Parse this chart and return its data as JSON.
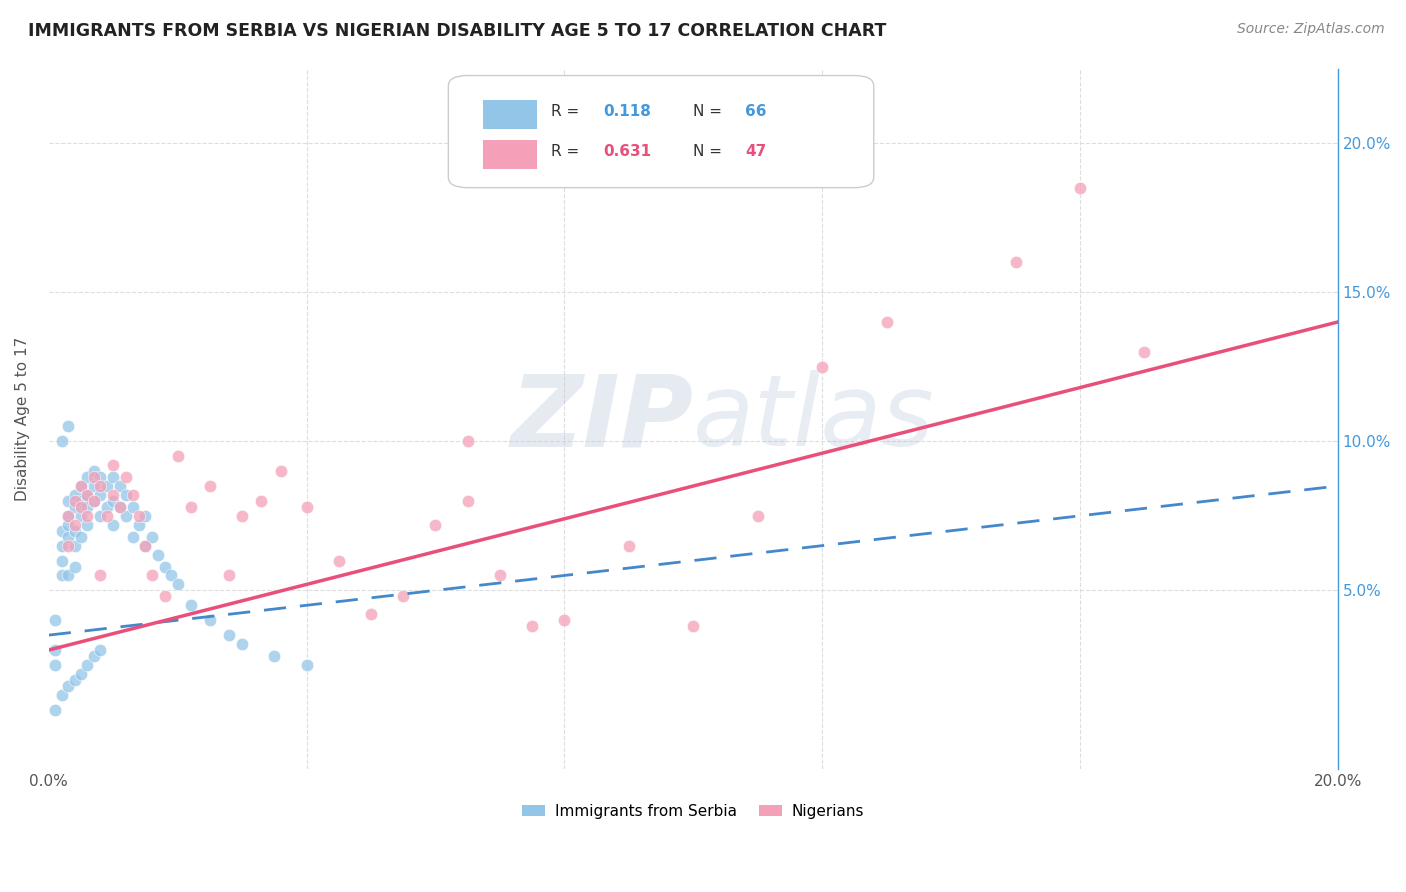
{
  "title": "IMMIGRANTS FROM SERBIA VS NIGERIAN DISABILITY AGE 5 TO 17 CORRELATION CHART",
  "source": "Source: ZipAtlas.com",
  "ylabel": "Disability Age 5 to 17",
  "xlim": [
    0.0,
    0.2
  ],
  "ylim": [
    -0.01,
    0.225
  ],
  "serbia_R": 0.118,
  "serbia_N": 66,
  "nigeria_R": 0.631,
  "nigeria_N": 47,
  "serbia_color": "#92C5E8",
  "nigeria_color": "#F4A0B8",
  "serbia_line_color": "#4488CC",
  "nigeria_line_color": "#E8507A",
  "watermark_color": "#C8D8EA",
  "background_color": "#FFFFFF",
  "grid_color": "#DDDDDD",
  "serbia_x": [
    0.001,
    0.001,
    0.001,
    0.002,
    0.002,
    0.002,
    0.002,
    0.003,
    0.003,
    0.003,
    0.003,
    0.003,
    0.004,
    0.004,
    0.004,
    0.004,
    0.004,
    0.005,
    0.005,
    0.005,
    0.005,
    0.006,
    0.006,
    0.006,
    0.006,
    0.007,
    0.007,
    0.007,
    0.008,
    0.008,
    0.008,
    0.009,
    0.009,
    0.01,
    0.01,
    0.01,
    0.011,
    0.011,
    0.012,
    0.012,
    0.013,
    0.013,
    0.014,
    0.015,
    0.015,
    0.016,
    0.017,
    0.018,
    0.019,
    0.02,
    0.022,
    0.025,
    0.028,
    0.03,
    0.035,
    0.04,
    0.001,
    0.002,
    0.003,
    0.004,
    0.005,
    0.006,
    0.007,
    0.008,
    0.002,
    0.003
  ],
  "serbia_y": [
    0.03,
    0.04,
    0.025,
    0.055,
    0.065,
    0.07,
    0.06,
    0.075,
    0.08,
    0.068,
    0.072,
    0.055,
    0.078,
    0.082,
    0.07,
    0.065,
    0.058,
    0.085,
    0.08,
    0.075,
    0.068,
    0.088,
    0.082,
    0.078,
    0.072,
    0.085,
    0.08,
    0.09,
    0.088,
    0.082,
    0.075,
    0.085,
    0.078,
    0.08,
    0.088,
    0.072,
    0.085,
    0.078,
    0.082,
    0.075,
    0.078,
    0.068,
    0.072,
    0.075,
    0.065,
    0.068,
    0.062,
    0.058,
    0.055,
    0.052,
    0.045,
    0.04,
    0.035,
    0.032,
    0.028,
    0.025,
    0.01,
    0.015,
    0.018,
    0.02,
    0.022,
    0.025,
    0.028,
    0.03,
    0.1,
    0.105
  ],
  "nigeria_x": [
    0.003,
    0.003,
    0.004,
    0.004,
    0.005,
    0.005,
    0.006,
    0.006,
    0.007,
    0.007,
    0.008,
    0.008,
    0.009,
    0.01,
    0.01,
    0.011,
    0.012,
    0.013,
    0.014,
    0.015,
    0.016,
    0.018,
    0.02,
    0.022,
    0.025,
    0.028,
    0.03,
    0.033,
    0.036,
    0.04,
    0.045,
    0.05,
    0.055,
    0.06,
    0.065,
    0.07,
    0.075,
    0.08,
    0.09,
    0.1,
    0.11,
    0.12,
    0.13,
    0.15,
    0.16,
    0.17,
    0.065
  ],
  "nigeria_y": [
    0.065,
    0.075,
    0.072,
    0.08,
    0.078,
    0.085,
    0.075,
    0.082,
    0.08,
    0.088,
    0.055,
    0.085,
    0.075,
    0.082,
    0.092,
    0.078,
    0.088,
    0.082,
    0.075,
    0.065,
    0.055,
    0.048,
    0.095,
    0.078,
    0.085,
    0.055,
    0.075,
    0.08,
    0.09,
    0.078,
    0.06,
    0.042,
    0.048,
    0.072,
    0.08,
    0.055,
    0.038,
    0.04,
    0.065,
    0.038,
    0.075,
    0.125,
    0.14,
    0.16,
    0.185,
    0.13,
    0.1
  ]
}
